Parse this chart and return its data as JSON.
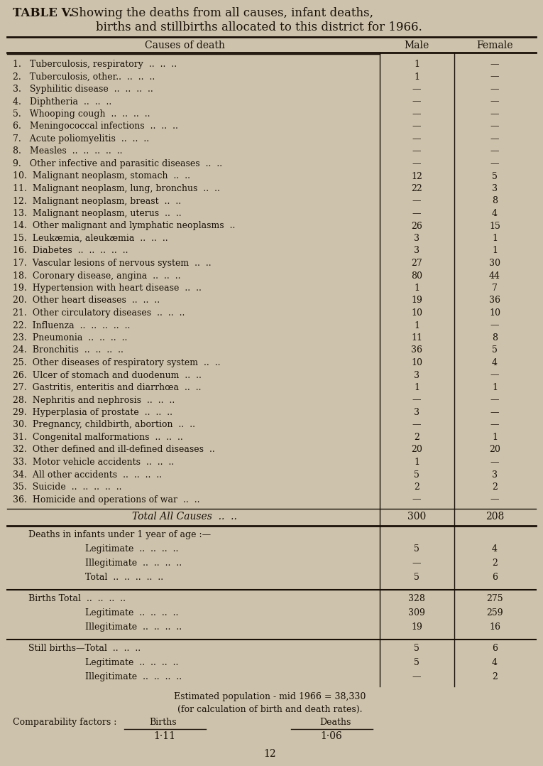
{
  "bg_color": "#cdc3ac",
  "text_color": "#1a1008",
  "title_bold": "TABLE V.",
  "title_rest_1": "Showing the deaths from all causes, infant deaths,",
  "title_rest_2": "births and stillbirths allocated to this district for 1966.",
  "col_header_cause": "Causes of death",
  "col_header_male": "Male",
  "col_header_female": "Female",
  "rows": [
    [
      "1.   Tuberculosis, respiratory  ..  ..  ..",
      "1",
      "—"
    ],
    [
      "2.   Tuberculosis, other..  ..  ..  ..",
      "1",
      "—"
    ],
    [
      "3.   Syphilitic disease  ..  ..  ..  ..",
      "—",
      "—"
    ],
    [
      "4.   Diphtheria  ..  ..  ..",
      "—",
      "—"
    ],
    [
      "5.   Whooping cough  ..  ..  ..  ..",
      "—",
      "—"
    ],
    [
      "6.   Meningococcal infections  ..  ..  ..",
      "—",
      "—"
    ],
    [
      "7.   Acute poliomyelitis  ..  ..  ..",
      "—",
      "—"
    ],
    [
      "8.   Measles  ..  ..  ..  ..  ..",
      "—",
      "—"
    ],
    [
      "9.   Other infective and parasitic diseases  ..  ..",
      "—",
      "—"
    ],
    [
      "10.  Malignant neoplasm, stomach  ..  ..",
      "12",
      "5"
    ],
    [
      "11.  Malignant neoplasm, lung, bronchus  ..  ..",
      "22",
      "3"
    ],
    [
      "12.  Malignant neoplasm, breast  ..  ..",
      "—",
      "8"
    ],
    [
      "13.  Malignant neoplasm, uterus  ..  ..",
      "—",
      "4"
    ],
    [
      "14.  Other malignant and lymphatic neoplasms  ..",
      "26",
      "15"
    ],
    [
      "15.  Leukæmia, aleukæmia  ..  ..  ..",
      "3",
      "1"
    ],
    [
      "16.  Diabetes  ..  ..  ..  ..  ..",
      "3",
      "1"
    ],
    [
      "17.  Vascular lesions of nervous system  ..  ..",
      "27",
      "30"
    ],
    [
      "18.  Coronary disease, angina  ..  ..  ..",
      "80",
      "44"
    ],
    [
      "19.  Hypertension with heart disease  ..  ..",
      "1",
      "7"
    ],
    [
      "20.  Other heart diseases  ..  ..  ..",
      "19",
      "36"
    ],
    [
      "21.  Other circulatory diseases  ..  ..  ..",
      "10",
      "10"
    ],
    [
      "22.  Influenza  ..  ..  ..  ..  ..",
      "1",
      "—"
    ],
    [
      "23.  Pneumonia  ..  ..  ..  ..",
      "11",
      "8"
    ],
    [
      "24.  Bronchitis  ..  ..  ..  ..",
      "36",
      "5"
    ],
    [
      "25.  Other diseases of respiratory system  ..  ..",
      "10",
      "4"
    ],
    [
      "26.  Ulcer of stomach and duodenum  ..  ..",
      "3",
      "—"
    ],
    [
      "27.  Gastritis, enteritis and diarrhœa  ..  ..",
      "1",
      "1"
    ],
    [
      "28.  Nephritis and nephrosis  ..  ..  ..",
      "—",
      "—"
    ],
    [
      "29.  Hyperplasia of prostate  ..  ..  ..",
      "3",
      "—"
    ],
    [
      "30.  Pregnancy, childbirth, abortion  ..  ..",
      "—",
      "—"
    ],
    [
      "31.  Congenital malformations  ..  ..  ..",
      "2",
      "1"
    ],
    [
      "32.  Other defined and ill-defined diseases  ..",
      "20",
      "20"
    ],
    [
      "33.  Motor vehicle accidents  ..  ..  ..",
      "1",
      "—"
    ],
    [
      "34.  All other accidents  ..  ..  ..  ..",
      "5",
      "3"
    ],
    [
      "35.  Suicide  ..  ..  ..  ..  ..",
      "2",
      "2"
    ],
    [
      "36.  Homicide and operations of war  ..  ..",
      "—",
      "—"
    ]
  ],
  "total_label": "Total All Causes  ..  ..",
  "total_male": "300",
  "total_female": "208",
  "infant_header": "Deaths in infants under 1 year of age :—",
  "infant_rows": [
    [
      "Legitimate  ..  ..  ..  ..",
      "5",
      "4"
    ],
    [
      "Illegitimate  ..  ..  ..  ..",
      "—",
      "2"
    ],
    [
      "Total  ..  ..  ..  ..  ..",
      "5",
      "6"
    ]
  ],
  "births_rows": [
    [
      "Births Total  ..  ..  ..  ..",
      "328",
      "275"
    ],
    [
      "Legitimate  ..  ..  ..  ..",
      "309",
      "259"
    ],
    [
      "Illegitimate  ..  ..  ..  ..",
      "19",
      "16"
    ]
  ],
  "stillbirths_rows": [
    [
      "Still births—Total  ..  ..  ..",
      "5",
      "6"
    ],
    [
      "Legitimate  ..  ..  ..  ..",
      "5",
      "4"
    ],
    [
      "Illegitimate  ..  ..  ..  ..",
      "—",
      "2"
    ]
  ],
  "footer1": "Estimated population - mid 1966 = 38,330",
  "footer2": "(for calculation of birth and death rates).",
  "footer3_label": "Comparability factors :",
  "footer3_births": "Births",
  "footer3_deaths": "Deaths",
  "footer_births_val": "1·11",
  "footer_deaths_val": "1·06",
  "page_num": "12"
}
